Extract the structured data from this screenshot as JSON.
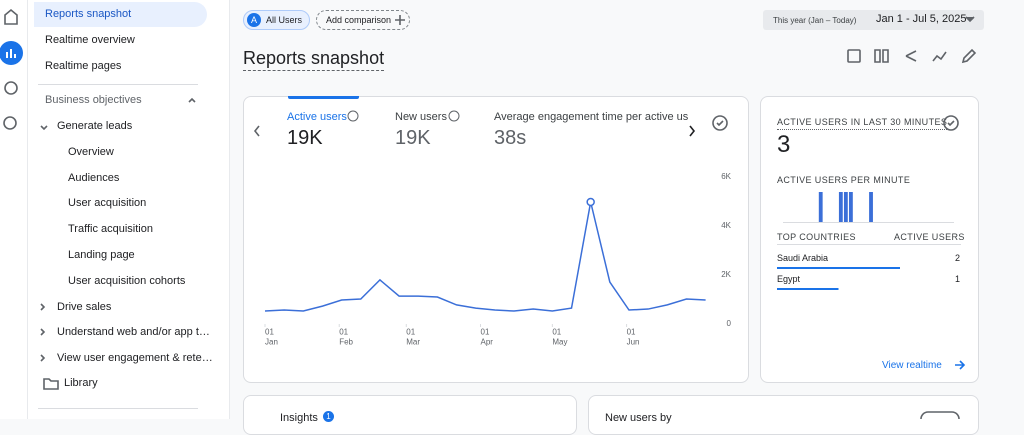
{
  "sidebar": {
    "items": [
      "Reports snapshot",
      "Realtime overview",
      "Realtime pages"
    ],
    "section": "Business objectives",
    "group": "Generate leads",
    "subitems": [
      "Overview",
      "Audiences",
      "User acquisition",
      "Traffic acquisition",
      "Landing page",
      "User acquisition cohorts"
    ],
    "more": [
      "Drive sales",
      "Understand web and/or app t…",
      "View user engagement & rete…"
    ],
    "library": "Library"
  },
  "toolbar": {
    "segment_initial": "A",
    "segment": "All Users",
    "add_comparison": "Add comparison",
    "date_preset": "This year (Jan – Today)",
    "date_range": "Jan 1 - Jul 5, 2025"
  },
  "header": {
    "title": "Reports snapshot"
  },
  "metrics": [
    {
      "label": "Active users",
      "value": "19K"
    },
    {
      "label": "New users",
      "value": "19K"
    },
    {
      "label": "Average engagement time per active us",
      "value": "38s"
    }
  ],
  "chart_data": [
    {
      "type": "line",
      "x": [
        "2025-01-01",
        "2025-01-09",
        "2025-01-17",
        "2025-01-25",
        "2025-02-02",
        "2025-02-10",
        "2025-02-18",
        "2025-02-26",
        "2025-03-06",
        "2025-03-14",
        "2025-03-22",
        "2025-03-30",
        "2025-04-07",
        "2025-04-15",
        "2025-04-23",
        "2025-05-01",
        "2025-05-09",
        "2025-05-17",
        "2025-05-25",
        "2025-06-02",
        "2025-06-10",
        "2025-06-18",
        "2025-06-26",
        "2025-07-04"
      ],
      "series": [
        {
          "name": "Active users",
          "color": "#3b6fd8",
          "values": [
            530,
            570,
            530,
            730,
            980,
            1020,
            1800,
            1140,
            1140,
            1100,
            780,
            650,
            570,
            530,
            610,
            530,
            650,
            4980,
            1710,
            570,
            610,
            780,
            1020,
            980
          ]
        }
      ],
      "xlim": [
        "2025-01-01",
        "2025-07-05"
      ],
      "xticks": [
        {
          "value": "2025-01-01",
          "label": "01 Jan"
        },
        {
          "value": "2025-02-01",
          "label": "01 Feb"
        },
        {
          "value": "2025-03-01",
          "label": "01 Mar"
        },
        {
          "value": "2025-04-01",
          "label": "01 Apr"
        },
        {
          "value": "2025-05-01",
          "label": "01 May"
        },
        {
          "value": "2025-06-01",
          "label": "01 Jun"
        }
      ],
      "ylim": [
        0,
        6000
      ],
      "yticks": [
        0,
        {
          "value": 2000,
          "label": "2K"
        },
        {
          "value": 4000,
          "label": "4K"
        },
        {
          "value": 6000,
          "label": "6K"
        }
      ],
      "grid": false
    },
    {
      "type": "bar",
      "title": "ACTIVE USERS PER MINUTE",
      "categories": [
        null,
        null,
        null,
        null,
        null,
        null,
        null,
        null,
        null,
        null,
        null,
        null,
        null,
        null,
        null,
        null,
        null,
        null,
        null,
        null,
        null,
        null,
        null,
        null,
        null,
        null,
        null,
        null,
        null,
        null,
        null,
        null,
        null,
        null
      ],
      "values": [
        0,
        0,
        0,
        0,
        0,
        0,
        0,
        1,
        0,
        0,
        0,
        1,
        1,
        1,
        0,
        0,
        0,
        1,
        0,
        0,
        0,
        0,
        0,
        0,
        0,
        0,
        0,
        0,
        0,
        0,
        0,
        0,
        0,
        0
      ],
      "color": "#3b6fd8"
    }
  ],
  "realtime": {
    "title": "ACTIVE USERS IN LAST 30 MINUTES",
    "value": "3",
    "countries_header": "TOP COUNTRIES",
    "users_header": "ACTIVE USERS",
    "countries": [
      {
        "name": "Saudi Arabia",
        "value": 2
      },
      {
        "name": "Egypt",
        "value": 1
      }
    ],
    "link": "View realtime"
  },
  "bottom": {
    "insights": "Insights",
    "insights_count": "1",
    "new_users": "New users by"
  }
}
